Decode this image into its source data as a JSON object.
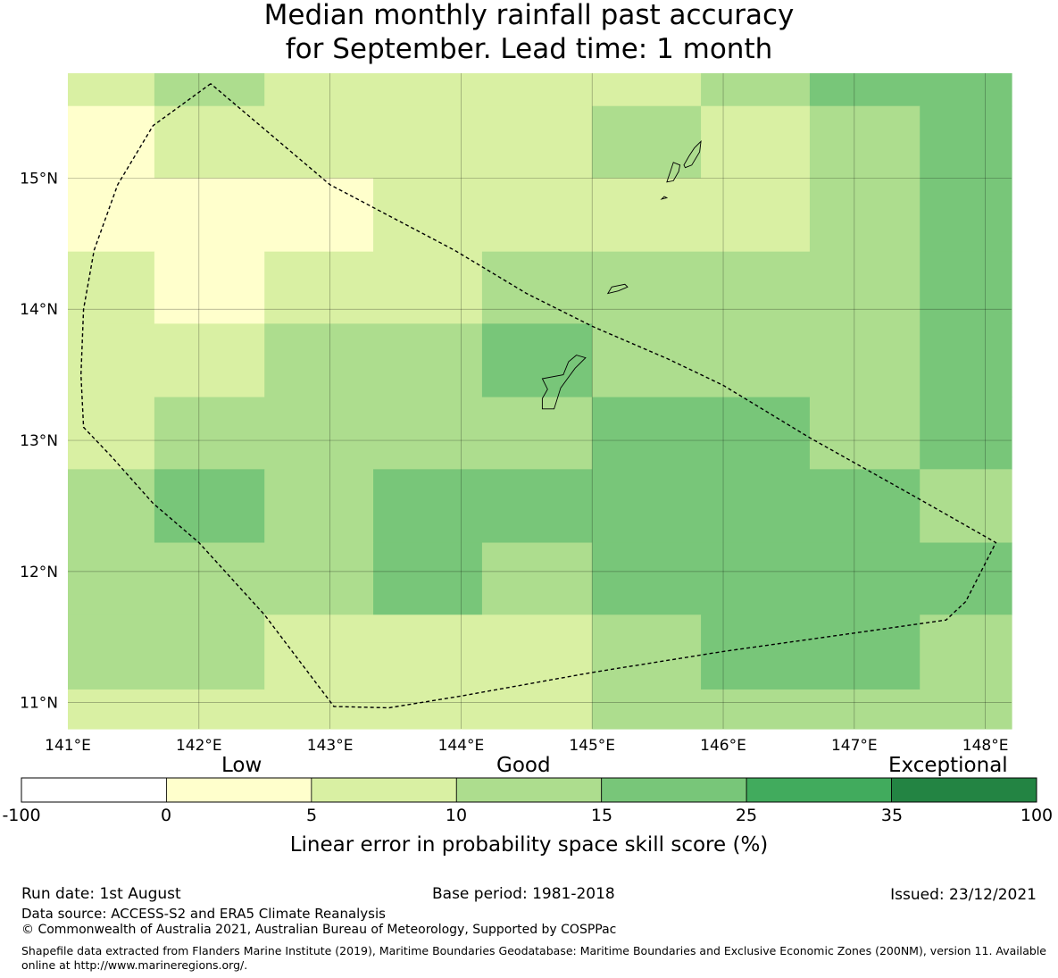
{
  "title": {
    "line1": "Median monthly rainfall past accuracy",
    "line2": "for September. Lead time: 1 month"
  },
  "map": {
    "lon_range": [
      141.0,
      148.2
    ],
    "lat_range": [
      10.8,
      15.8
    ],
    "lon_ticks": [
      {
        "value": 141,
        "label": "141°E"
      },
      {
        "value": 142,
        "label": "142°E"
      },
      {
        "value": 143,
        "label": "143°E"
      },
      {
        "value": 144,
        "label": "144°E"
      },
      {
        "value": 145,
        "label": "145°E"
      },
      {
        "value": 146,
        "label": "146°E"
      },
      {
        "value": 147,
        "label": "147°E"
      },
      {
        "value": 148,
        "label": "148°E"
      }
    ],
    "lat_ticks": [
      {
        "value": 15,
        "label": "15°N"
      },
      {
        "value": 14,
        "label": "14°N"
      },
      {
        "value": 13,
        "label": "13°N"
      },
      {
        "value": 12,
        "label": "12°N"
      },
      {
        "value": 11,
        "label": "11°N"
      }
    ],
    "grid_lines": true,
    "grid_cells": [
      {
        "lon": [
          141.0,
          141.66
        ],
        "lat": [
          15.55,
          15.8
        ],
        "class": 2
      },
      {
        "lon": [
          141.66,
          142.5
        ],
        "lat": [
          15.55,
          15.8
        ],
        "class": 3
      },
      {
        "lon": [
          142.5,
          145.0
        ],
        "lat": [
          15.55,
          15.8
        ],
        "class": 2
      },
      {
        "lon": [
          145.0,
          145.83
        ],
        "lat": [
          15.55,
          15.8
        ],
        "class": 2
      },
      {
        "lon": [
          145.83,
          146.66
        ],
        "lat": [
          15.55,
          15.8
        ],
        "class": 3
      },
      {
        "lon": [
          146.66,
          148.2
        ],
        "lat": [
          15.55,
          15.8
        ],
        "class": 4
      },
      {
        "lon": [
          141.0,
          141.66
        ],
        "lat": [
          15.0,
          15.55
        ],
        "class": 1
      },
      {
        "lon": [
          141.66,
          145.0
        ],
        "lat": [
          15.0,
          15.55
        ],
        "class": 2
      },
      {
        "lon": [
          145.0,
          145.83
        ],
        "lat": [
          15.0,
          15.55
        ],
        "class": 3
      },
      {
        "lon": [
          145.83,
          146.66
        ],
        "lat": [
          15.0,
          15.55
        ],
        "class": 2
      },
      {
        "lon": [
          146.66,
          147.5
        ],
        "lat": [
          15.0,
          15.55
        ],
        "class": 3
      },
      {
        "lon": [
          147.5,
          148.2
        ],
        "lat": [
          15.0,
          15.55
        ],
        "class": 4
      },
      {
        "lon": [
          141.0,
          143.33
        ],
        "lat": [
          14.44,
          15.0
        ],
        "class": 1
      },
      {
        "lon": [
          143.33,
          146.66
        ],
        "lat": [
          14.44,
          15.0
        ],
        "class": 2
      },
      {
        "lon": [
          146.66,
          147.5
        ],
        "lat": [
          14.44,
          15.0
        ],
        "class": 3
      },
      {
        "lon": [
          147.5,
          148.2
        ],
        "lat": [
          14.44,
          15.0
        ],
        "class": 4
      },
      {
        "lon": [
          141.0,
          141.66
        ],
        "lat": [
          13.89,
          14.44
        ],
        "class": 2
      },
      {
        "lon": [
          141.66,
          142.5
        ],
        "lat": [
          13.89,
          14.44
        ],
        "class": 1
      },
      {
        "lon": [
          142.5,
          144.16
        ],
        "lat": [
          13.89,
          14.44
        ],
        "class": 2
      },
      {
        "lon": [
          144.16,
          147.5
        ],
        "lat": [
          13.89,
          14.44
        ],
        "class": 3
      },
      {
        "lon": [
          147.5,
          148.2
        ],
        "lat": [
          13.89,
          14.44
        ],
        "class": 4
      },
      {
        "lon": [
          141.0,
          142.5
        ],
        "lat": [
          13.33,
          13.89
        ],
        "class": 2
      },
      {
        "lon": [
          142.5,
          144.16
        ],
        "lat": [
          13.33,
          13.89
        ],
        "class": 3
      },
      {
        "lon": [
          144.16,
          145.0
        ],
        "lat": [
          13.33,
          13.89
        ],
        "class": 4
      },
      {
        "lon": [
          145.0,
          147.5
        ],
        "lat": [
          13.33,
          13.89
        ],
        "class": 3
      },
      {
        "lon": [
          147.5,
          148.2
        ],
        "lat": [
          13.33,
          13.89
        ],
        "class": 4
      },
      {
        "lon": [
          141.0,
          141.66
        ],
        "lat": [
          12.78,
          13.33
        ],
        "class": 2
      },
      {
        "lon": [
          141.66,
          145.0
        ],
        "lat": [
          12.78,
          13.33
        ],
        "class": 3
      },
      {
        "lon": [
          145.0,
          146.66
        ],
        "lat": [
          12.78,
          13.33
        ],
        "class": 4
      },
      {
        "lon": [
          146.66,
          147.5
        ],
        "lat": [
          12.78,
          13.33
        ],
        "class": 3
      },
      {
        "lon": [
          147.5,
          148.2
        ],
        "lat": [
          12.78,
          13.33
        ],
        "class": 4
      },
      {
        "lon": [
          141.0,
          141.66
        ],
        "lat": [
          12.22,
          12.78
        ],
        "class": 3
      },
      {
        "lon": [
          141.66,
          142.5
        ],
        "lat": [
          12.22,
          12.78
        ],
        "class": 4
      },
      {
        "lon": [
          142.5,
          143.33
        ],
        "lat": [
          12.22,
          12.78
        ],
        "class": 3
      },
      {
        "lon": [
          143.33,
          147.5
        ],
        "lat": [
          12.22,
          12.78
        ],
        "class": 4
      },
      {
        "lon": [
          147.5,
          148.2
        ],
        "lat": [
          12.22,
          12.78
        ],
        "class": 3
      },
      {
        "lon": [
          141.0,
          143.33
        ],
        "lat": [
          11.67,
          12.22
        ],
        "class": 3
      },
      {
        "lon": [
          143.33,
          144.16
        ],
        "lat": [
          11.67,
          12.22
        ],
        "class": 4
      },
      {
        "lon": [
          144.16,
          145.0
        ],
        "lat": [
          11.67,
          12.22
        ],
        "class": 3
      },
      {
        "lon": [
          145.0,
          148.2
        ],
        "lat": [
          11.67,
          12.22
        ],
        "class": 4
      },
      {
        "lon": [
          141.0,
          142.5
        ],
        "lat": [
          11.1,
          11.67
        ],
        "class": 3
      },
      {
        "lon": [
          142.5,
          145.0
        ],
        "lat": [
          11.1,
          11.67
        ],
        "class": 2
      },
      {
        "lon": [
          145.0,
          145.83
        ],
        "lat": [
          11.1,
          11.67
        ],
        "class": 3
      },
      {
        "lon": [
          145.83,
          147.5
        ],
        "lat": [
          11.1,
          11.67
        ],
        "class": 4
      },
      {
        "lon": [
          147.5,
          148.2
        ],
        "lat": [
          11.1,
          11.67
        ],
        "class": 3
      },
      {
        "lon": [
          141.0,
          145.0
        ],
        "lat": [
          10.8,
          11.1
        ],
        "class": 2
      },
      {
        "lon": [
          145.0,
          148.2
        ],
        "lat": [
          10.8,
          11.1
        ],
        "class": 3
      }
    ],
    "eez_boundary": [
      [
        142.09,
        15.72
      ],
      [
        141.65,
        15.4
      ],
      [
        141.38,
        14.95
      ],
      [
        141.2,
        14.45
      ],
      [
        141.12,
        14.0
      ],
      [
        141.1,
        13.5
      ],
      [
        141.12,
        13.1
      ],
      [
        141.33,
        12.88
      ],
      [
        141.65,
        12.52
      ],
      [
        142.0,
        12.22
      ],
      [
        142.5,
        11.67
      ],
      [
        143.03,
        10.97
      ],
      [
        143.45,
        10.96
      ],
      [
        144.0,
        11.05
      ],
      [
        145.0,
        11.23
      ],
      [
        146.0,
        11.39
      ],
      [
        147.0,
        11.53
      ],
      [
        147.7,
        11.63
      ],
      [
        147.85,
        11.77
      ],
      [
        148.08,
        12.22
      ],
      [
        147.5,
        12.55
      ],
      [
        146.66,
        13.02
      ],
      [
        146.0,
        13.42
      ],
      [
        145.58,
        13.62
      ],
      [
        145.0,
        13.87
      ],
      [
        144.5,
        14.12
      ],
      [
        143.95,
        14.45
      ],
      [
        143.0,
        14.95
      ],
      [
        142.09,
        15.72
      ]
    ],
    "islands": [
      [
        [
          144.62,
          13.24
        ],
        [
          144.71,
          13.24
        ],
        [
          144.76,
          13.4
        ],
        [
          144.87,
          13.55
        ],
        [
          144.95,
          13.63
        ],
        [
          144.88,
          13.65
        ],
        [
          144.82,
          13.6
        ],
        [
          144.78,
          13.5
        ],
        [
          144.62,
          13.47
        ],
        [
          144.66,
          13.39
        ],
        [
          144.62,
          13.32
        ]
      ],
      [
        [
          145.12,
          14.12
        ],
        [
          145.2,
          14.14
        ],
        [
          145.27,
          14.17
        ],
        [
          145.25,
          14.19
        ],
        [
          145.15,
          14.17
        ]
      ],
      [
        [
          145.57,
          14.97
        ],
        [
          145.62,
          14.98
        ],
        [
          145.66,
          15.05
        ],
        [
          145.67,
          15.1
        ],
        [
          145.62,
          15.12
        ],
        [
          145.6,
          15.06
        ]
      ],
      [
        [
          145.53,
          14.84
        ],
        [
          145.57,
          14.85
        ],
        [
          145.55,
          14.86
        ]
      ],
      [
        [
          145.71,
          15.08
        ],
        [
          145.76,
          15.1
        ],
        [
          145.82,
          15.2
        ],
        [
          145.83,
          15.28
        ],
        [
          145.78,
          15.23
        ],
        [
          145.74,
          15.17
        ],
        [
          145.7,
          15.1
        ]
      ]
    ]
  },
  "colorbar": {
    "categories": [
      "Low",
      "Good",
      "Exceptional"
    ],
    "ticks": [
      "-100",
      "0",
      "5",
      "10",
      "15",
      "25",
      "35",
      "100"
    ],
    "colors": [
      "#ffffff",
      "#ffffcc",
      "#d9f0a3",
      "#addd8e",
      "#78c679",
      "#41ab5d",
      "#238443"
    ],
    "title": "Linear error in probability space skill score (%)"
  },
  "footer": {
    "run_date": "Run date: 1st August",
    "base_period": "Base period: 1981-2018",
    "issued": "Issued: 23/12/2021",
    "data_source": "Data source: ACCESS-S2 and ERA5 Climate Reanalysis",
    "copyright": "© Commonwealth of Australia 2021, Australian Bureau of Meteorology, Supported by COSPPac",
    "shapefile": "Shapefile data extracted from Flanders Marine Institute (2019), Maritime Boundaries Geodatabase: Maritime Boundaries and Exclusive Economic Zones (200NM), version 11. Available online at http://www.marineregions.org/."
  }
}
